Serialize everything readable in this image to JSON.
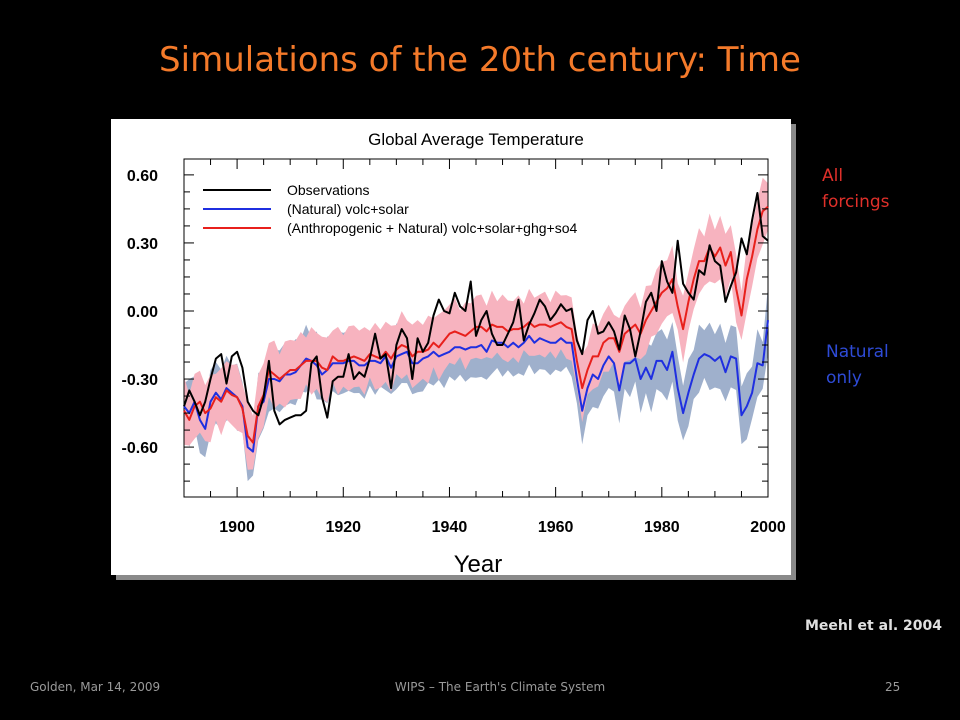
{
  "slide": {
    "title": "Simulations of the 20th century: Time",
    "label_all": "All forcings",
    "label_natural": "Natural only",
    "citation": "Meehl et al. 2004",
    "footer_left": "Golden, Mar 14, 2009",
    "footer_center": "WIPS – The Earth's Climate System",
    "page_number": "25"
  },
  "chart_data": {
    "type": "line",
    "title": "Global Average Temperature",
    "xlabel": "Year",
    "ylabel": "",
    "xlim": [
      1890,
      2000
    ],
    "ylim": [
      -0.82,
      0.67
    ],
    "xticks": [
      1900,
      1920,
      1940,
      1960,
      1980,
      2000
    ],
    "yticks": [
      0.6,
      0.3,
      0.0,
      -0.3,
      -0.6
    ],
    "ytick_labels": [
      "0.60",
      "0.30",
      "0.00",
      "-0.30",
      "-0.60"
    ],
    "legend_position": "top-left",
    "x_start": 1890,
    "series": [
      {
        "name": "Observations",
        "color": "#000000",
        "values": [
          -0.42,
          -0.35,
          -0.4,
          -0.46,
          -0.4,
          -0.3,
          -0.21,
          -0.19,
          -0.32,
          -0.2,
          -0.18,
          -0.25,
          -0.4,
          -0.44,
          -0.46,
          -0.38,
          -0.22,
          -0.44,
          -0.5,
          -0.48,
          -0.47,
          -0.46,
          -0.46,
          -0.44,
          -0.23,
          -0.2,
          -0.38,
          -0.47,
          -0.31,
          -0.29,
          -0.29,
          -0.19,
          -0.3,
          -0.27,
          -0.29,
          -0.21,
          -0.1,
          -0.21,
          -0.19,
          -0.34,
          -0.15,
          -0.08,
          -0.12,
          -0.3,
          -0.12,
          -0.18,
          -0.14,
          -0.02,
          0.05,
          0.0,
          -0.01,
          0.08,
          0.02,
          0.0,
          0.13,
          -0.11,
          -0.04,
          0.0,
          -0.1,
          -0.15,
          -0.15,
          -0.1,
          -0.05,
          0.05,
          -0.13,
          -0.06,
          -0.01,
          0.05,
          0.02,
          -0.04,
          -0.01,
          0.03,
          0.0,
          0.01,
          -0.13,
          -0.19,
          -0.04,
          0.0,
          -0.1,
          -0.09,
          -0.05,
          -0.09,
          -0.17,
          -0.02,
          -0.08,
          -0.2,
          -0.09,
          0.04,
          0.08,
          0.0,
          0.22,
          0.13,
          0.08,
          0.31,
          0.12,
          0.08,
          0.05,
          0.18,
          0.16,
          0.29,
          0.22,
          0.2,
          0.04,
          0.11,
          0.17,
          0.32,
          0.25,
          0.4,
          0.52,
          0.33,
          0.31
        ]
      },
      {
        "name": "(Natural) volc+solar",
        "color": "#1f2fe0",
        "values": [
          -0.42,
          -0.45,
          -0.4,
          -0.48,
          -0.52,
          -0.4,
          -0.36,
          -0.39,
          -0.34,
          -0.36,
          -0.38,
          -0.42,
          -0.6,
          -0.62,
          -0.42,
          -0.4,
          -0.3,
          -0.3,
          -0.31,
          -0.28,
          -0.28,
          -0.27,
          -0.24,
          -0.21,
          -0.22,
          -0.24,
          -0.28,
          -0.26,
          -0.23,
          -0.23,
          -0.23,
          -0.22,
          -0.22,
          -0.24,
          -0.24,
          -0.22,
          -0.22,
          -0.23,
          -0.2,
          -0.25,
          -0.2,
          -0.19,
          -0.18,
          -0.23,
          -0.23,
          -0.21,
          -0.2,
          -0.18,
          -0.2,
          -0.19,
          -0.18,
          -0.16,
          -0.16,
          -0.17,
          -0.16,
          -0.16,
          -0.15,
          -0.18,
          -0.13,
          -0.14,
          -0.14,
          -0.16,
          -0.14,
          -0.16,
          -0.14,
          -0.11,
          -0.14,
          -0.12,
          -0.13,
          -0.14,
          -0.14,
          -0.12,
          -0.14,
          -0.14,
          -0.3,
          -0.44,
          -0.34,
          -0.28,
          -0.3,
          -0.24,
          -0.2,
          -0.23,
          -0.35,
          -0.23,
          -0.23,
          -0.21,
          -0.3,
          -0.25,
          -0.3,
          -0.22,
          -0.22,
          -0.26,
          -0.18,
          -0.34,
          -0.45,
          -0.36,
          -0.28,
          -0.21,
          -0.19,
          -0.2,
          -0.22,
          -0.2,
          -0.27,
          -0.2,
          -0.21,
          -0.46,
          -0.42,
          -0.36,
          -0.23,
          -0.24,
          -0.04
        ]
      },
      {
        "name": "(Anthropogenic + Natural) volc+solar+ghg+so4",
        "color": "#e8201c",
        "values": [
          -0.44,
          -0.48,
          -0.42,
          -0.4,
          -0.45,
          -0.43,
          -0.38,
          -0.4,
          -0.35,
          -0.37,
          -0.38,
          -0.43,
          -0.55,
          -0.58,
          -0.42,
          -0.37,
          -0.26,
          -0.28,
          -0.3,
          -0.28,
          -0.26,
          -0.26,
          -0.24,
          -0.22,
          -0.22,
          -0.22,
          -0.25,
          -0.26,
          -0.2,
          -0.22,
          -0.22,
          -0.21,
          -0.2,
          -0.21,
          -0.22,
          -0.19,
          -0.2,
          -0.21,
          -0.18,
          -0.21,
          -0.17,
          -0.15,
          -0.16,
          -0.2,
          -0.18,
          -0.18,
          -0.17,
          -0.14,
          -0.16,
          -0.13,
          -0.1,
          -0.09,
          -0.1,
          -0.11,
          -0.09,
          -0.07,
          -0.07,
          -0.09,
          -0.06,
          -0.07,
          -0.07,
          -0.09,
          -0.08,
          -0.08,
          -0.07,
          -0.05,
          -0.07,
          -0.06,
          -0.06,
          -0.07,
          -0.06,
          -0.05,
          -0.07,
          -0.08,
          -0.22,
          -0.34,
          -0.26,
          -0.2,
          -0.2,
          -0.14,
          -0.12,
          -0.12,
          -0.18,
          -0.1,
          -0.08,
          -0.06,
          -0.1,
          -0.04,
          0.0,
          0.04,
          0.08,
          0.1,
          0.14,
          0.02,
          -0.08,
          0.04,
          0.14,
          0.22,
          0.22,
          0.28,
          0.24,
          0.28,
          0.2,
          0.26,
          0.1,
          -0.02,
          0.14,
          0.24,
          0.36,
          0.44,
          0.46
        ]
      }
    ]
  }
}
